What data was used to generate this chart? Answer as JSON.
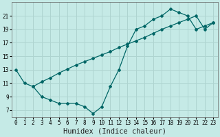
{
  "xlabel": "Humidex (Indice chaleur)",
  "bg_color": "#c5eae6",
  "grid_color": "#aed4d0",
  "line_color": "#006666",
  "line1_x": [
    0,
    1,
    2,
    3,
    4,
    5,
    6,
    7,
    8,
    9,
    10,
    11,
    12,
    13,
    14,
    15,
    16,
    17,
    18,
    19,
    20,
    21,
    22,
    23
  ],
  "line1_y": [
    13,
    11,
    10.5,
    9,
    8.5,
    8,
    8,
    8,
    7.5,
    6.5,
    7.5,
    10.5,
    13,
    16.5,
    19,
    19.5,
    20.5,
    21,
    22,
    21.5,
    21,
    19,
    19.5,
    20
  ],
  "line2_x": [
    2,
    3,
    4,
    5,
    6,
    7,
    8,
    9,
    10,
    11,
    12,
    13,
    14,
    15,
    16,
    17,
    18,
    19,
    20,
    21,
    22,
    23
  ],
  "line2_y": [
    10.5,
    11.2,
    11.8,
    12.5,
    13.1,
    13.7,
    14.2,
    14.7,
    15.2,
    15.7,
    16.3,
    16.8,
    17.3,
    17.8,
    18.4,
    19.0,
    19.5,
    20.0,
    20.5,
    21.0,
    19.0,
    20.0
  ],
  "xlim": [
    -0.5,
    23.5
  ],
  "ylim": [
    6,
    23
  ],
  "xticks": [
    0,
    1,
    2,
    3,
    4,
    5,
    6,
    7,
    8,
    9,
    10,
    11,
    12,
    13,
    14,
    15,
    16,
    17,
    18,
    19,
    20,
    21,
    22,
    23
  ],
  "yticks": [
    7,
    9,
    11,
    13,
    15,
    17,
    19,
    21
  ],
  "tick_fontsize": 5.5,
  "label_fontsize": 7.5
}
